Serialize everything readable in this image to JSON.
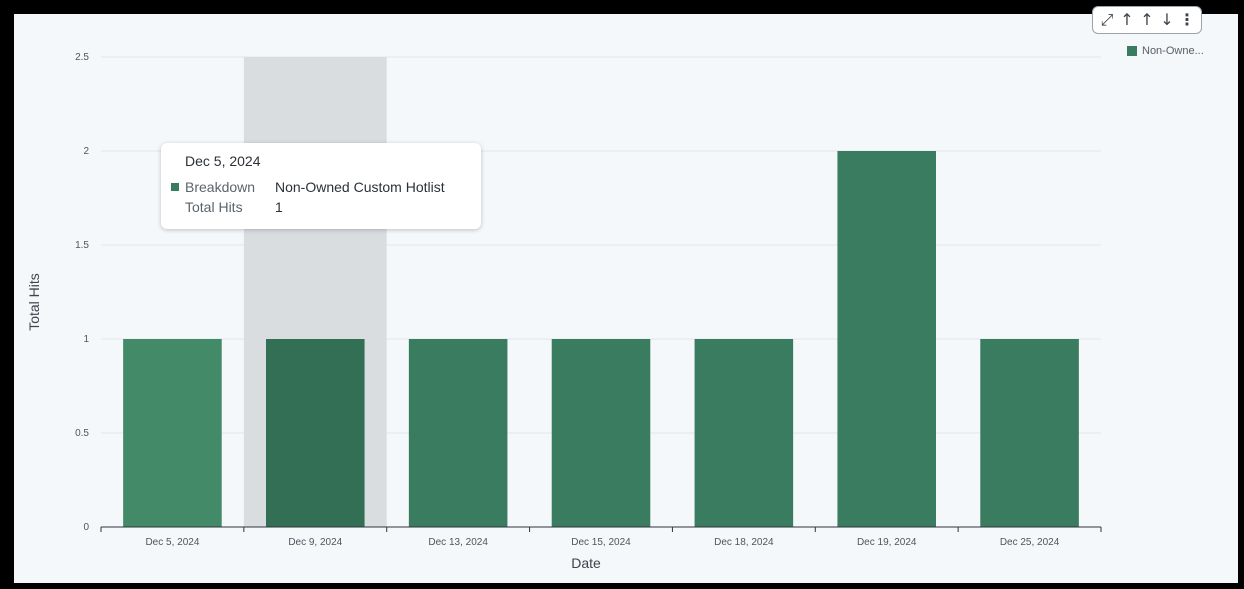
{
  "toolbar": {
    "expand_icon": "expand-arrows-icon",
    "sort_asc_icon": "arrow-up-icon",
    "sort_asc2_icon": "arrow-up-icon",
    "sort_desc_icon": "arrow-down-icon",
    "more_icon": "vertical-dots-icon"
  },
  "legend": {
    "label": "Non-Owne..."
  },
  "tooltip": {
    "title": "Dec 5, 2024",
    "breakdown_key": "Breakdown",
    "breakdown_value": "Non-Owned Custom Hotlist",
    "hits_key": "Total Hits",
    "hits_value": "1"
  },
  "colors": {
    "bar": "#3a7c60",
    "bar_first": "#428a68",
    "bar_highlight": "#336f55",
    "highlight_band": "#d9dde0",
    "grid": "#e1e6ea",
    "axis": "#2f353a"
  },
  "chart_data": {
    "type": "bar",
    "categories": [
      "Dec 5, 2024",
      "Dec 9, 2024",
      "Dec 13, 2024",
      "Dec 15, 2024",
      "Dec 18, 2024",
      "Dec 19, 2024",
      "Dec 25, 2024"
    ],
    "series": [
      {
        "name": "Non-Owned Custom Hotlist",
        "values": [
          1,
          1,
          1,
          1,
          1,
          2,
          1
        ]
      }
    ],
    "xlabel": "Date",
    "ylabel": "Total Hits",
    "ylim": [
      0,
      2.5
    ],
    "yticks": [
      "0",
      "0.5",
      "1",
      "1.5",
      "2",
      "2.5"
    ],
    "ytick_values": [
      0,
      0.5,
      1,
      1.5,
      2,
      2.5
    ],
    "highlighted_category": "Dec 9, 2024",
    "grid": true,
    "legend_position": "top-right"
  }
}
